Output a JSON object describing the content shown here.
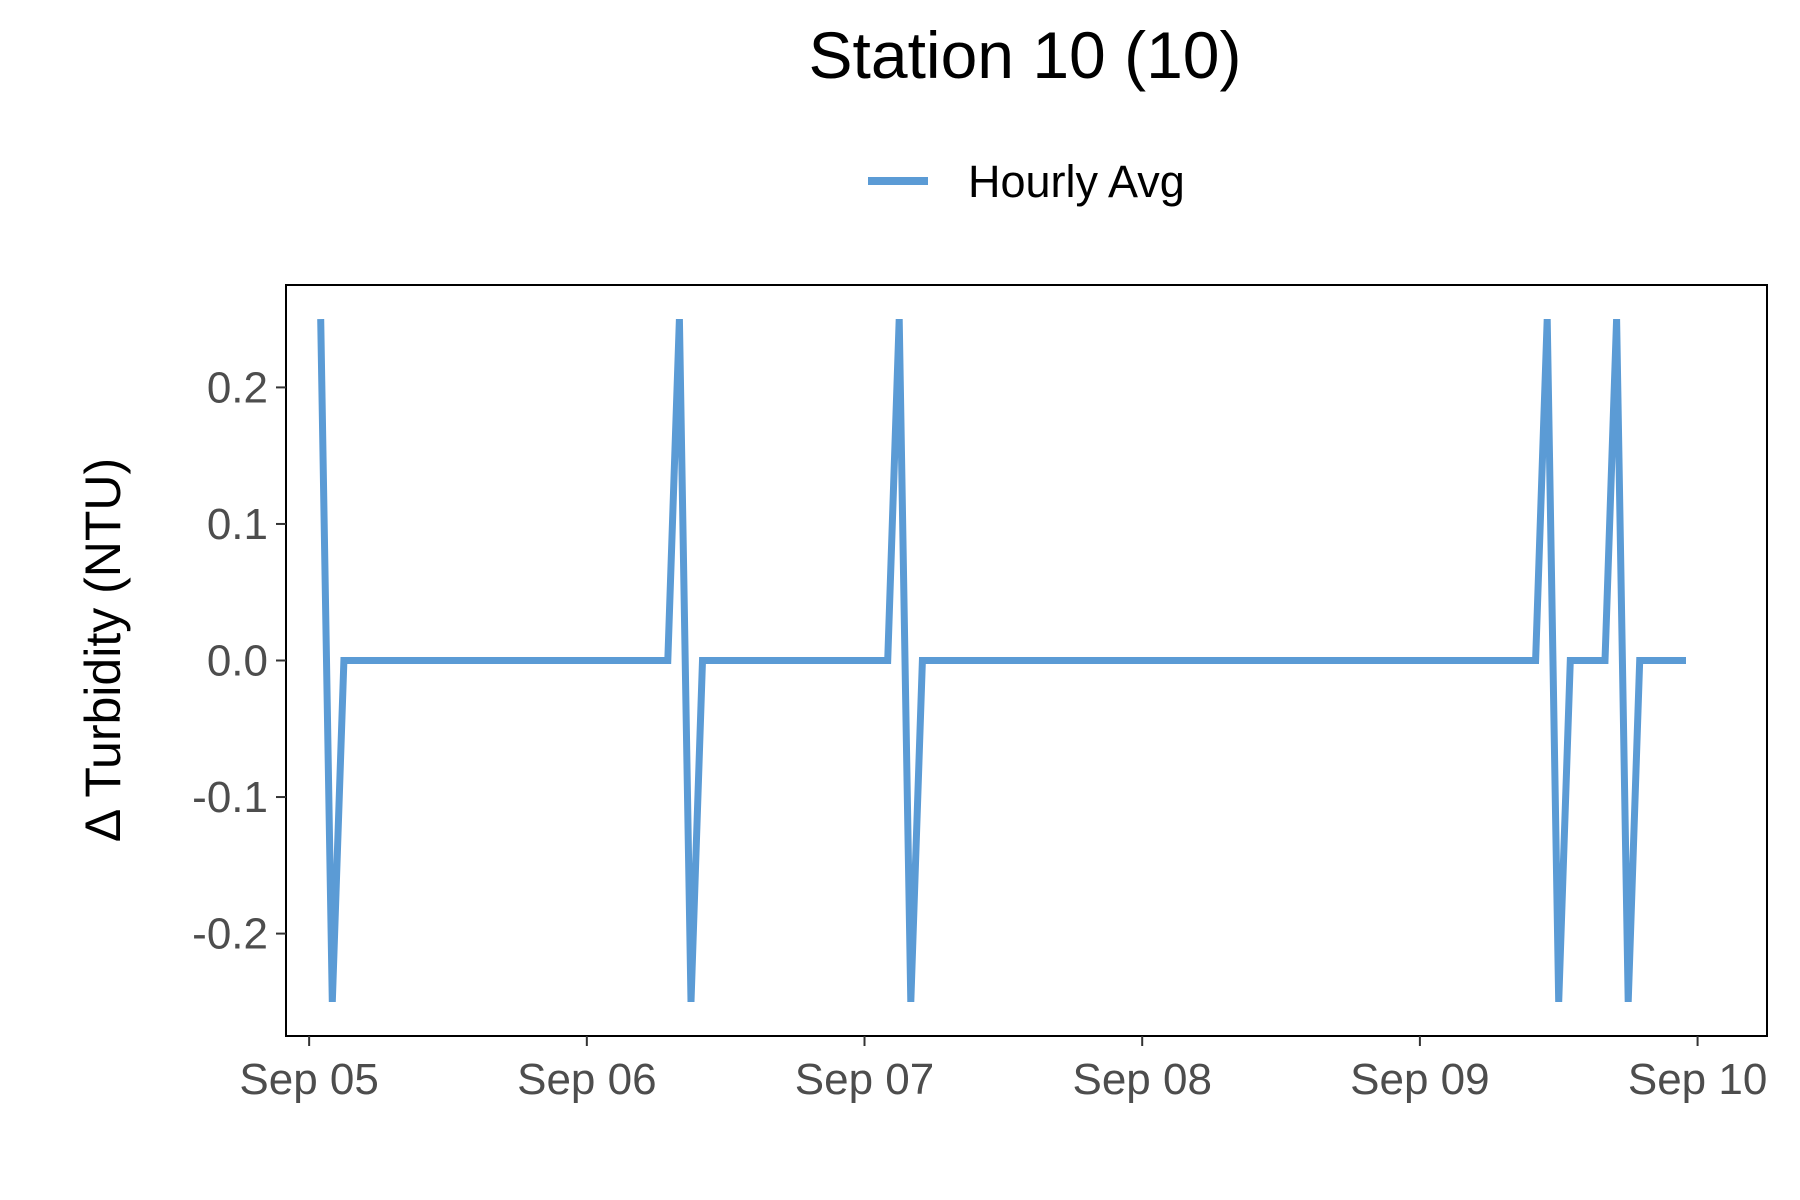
{
  "chart_data": {
    "type": "line",
    "title": "Station 10 (10)",
    "ylabel": "Δ Turbidity (NTU)",
    "xlabel": "",
    "x_ticks": [
      "Sep 05",
      "Sep 06",
      "Sep 07",
      "Sep 08",
      "Sep 09",
      "Sep 10"
    ],
    "y_ticks": [
      "-0.2",
      "-0.1",
      "0.0",
      "0.1",
      "0.2"
    ],
    "y_tick_values": [
      -0.2,
      -0.1,
      0.0,
      0.1,
      0.2
    ],
    "xlim": [
      "2023-09-04 22:00",
      "2023-09-10 06:00"
    ],
    "ylim": [
      -0.275,
      0.275
    ],
    "grid": false,
    "legend_position": "top",
    "series": [
      {
        "name": "Hourly Avg",
        "color": "#5b9bd5",
        "points": [
          [
            "2023-09-05 01:00",
            0.25
          ],
          [
            "2023-09-05 02:00",
            -0.25
          ],
          [
            "2023-09-05 03:00",
            0.0
          ],
          [
            "2023-09-06 07:00",
            0.0
          ],
          [
            "2023-09-06 08:00",
            0.25
          ],
          [
            "2023-09-06 09:00",
            -0.25
          ],
          [
            "2023-09-06 10:00",
            0.0
          ],
          [
            "2023-09-07 02:00",
            0.0
          ],
          [
            "2023-09-07 03:00",
            0.25
          ],
          [
            "2023-09-07 04:00",
            -0.25
          ],
          [
            "2023-09-07 05:00",
            0.0
          ],
          [
            "2023-09-09 10:00",
            0.0
          ],
          [
            "2023-09-09 11:00",
            0.25
          ],
          [
            "2023-09-09 12:00",
            -0.25
          ],
          [
            "2023-09-09 13:00",
            0.0
          ],
          [
            "2023-09-09 16:00",
            0.0
          ],
          [
            "2023-09-09 17:00",
            0.25
          ],
          [
            "2023-09-09 18:00",
            -0.25
          ],
          [
            "2023-09-09 19:00",
            0.0
          ],
          [
            "2023-09-09 23:00",
            0.0
          ]
        ]
      }
    ]
  }
}
